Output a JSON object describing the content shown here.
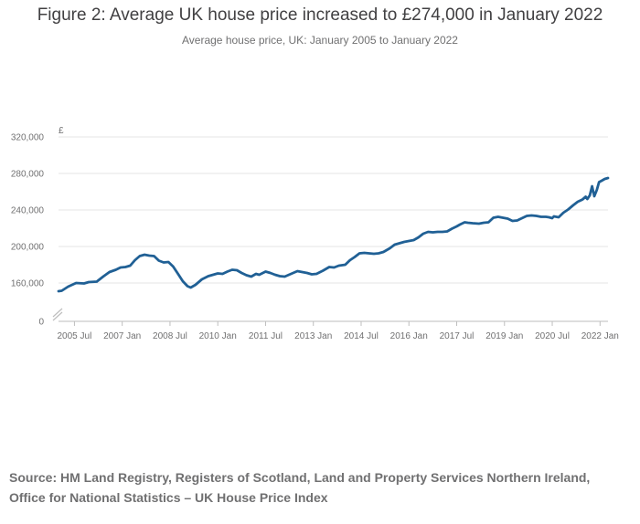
{
  "header": {
    "title": "Figure 2: Average UK house price increased to £274,000 in January 2022",
    "subtitle": "Average house price, UK: January 2005 to January 2022"
  },
  "source": {
    "line1": "Source: HM Land Registry, Registers of Scotland, Land and Property Services Northern Ireland,",
    "line2": "Office for National Statistics – UK House Price Index"
  },
  "colors": {
    "line": "#206095",
    "grid": "#e6e6e6",
    "axis": "#bebebe",
    "text": "#707071"
  },
  "chart_data": {
    "type": "line",
    "title": "Figure 2: Average UK house price increased to £274,000 in January 2022",
    "subtitle": "Average house price, UK: January 2005 to January 2022",
    "ylabel": "£",
    "xlabel": "",
    "ylim": [
      0,
      320000
    ],
    "axis_break": true,
    "grid": true,
    "y_ticks": [
      0,
      160000,
      200000,
      240000,
      280000,
      320000
    ],
    "y_tick_labels": [
      "0",
      "160,000",
      "200,000",
      "240,000",
      "280,000",
      "320,000"
    ],
    "x_ticks": [
      {
        "t": 2005.5,
        "label": "2005 Jul"
      },
      {
        "t": 2007.0,
        "label": "2007 Jan"
      },
      {
        "t": 2008.5,
        "label": "2008 Jul"
      },
      {
        "t": 2010.0,
        "label": "2010 Jan"
      },
      {
        "t": 2011.5,
        "label": "2011 Jul"
      },
      {
        "t": 2013.0,
        "label": "2013 Jan"
      },
      {
        "t": 2014.5,
        "label": "2014 Jul"
      },
      {
        "t": 2016.0,
        "label": "2016 Jan"
      },
      {
        "t": 2017.5,
        "label": "2017 Jul"
      },
      {
        "t": 2019.0,
        "label": "2019 Jan"
      },
      {
        "t": 2020.5,
        "label": "2020 Jul"
      },
      {
        "t": 2022.0,
        "label": "2022 Jan"
      }
    ],
    "series": [
      {
        "name": "Average house price",
        "points": [
          [
            2005.0,
            151000
          ],
          [
            2005.1,
            151500
          ],
          [
            2005.3,
            156000
          ],
          [
            2005.55,
            160000
          ],
          [
            2005.8,
            159500
          ],
          [
            2005.95,
            161000
          ],
          [
            2006.2,
            161500
          ],
          [
            2006.4,
            167000
          ],
          [
            2006.6,
            172000
          ],
          [
            2006.8,
            174500
          ],
          [
            2006.95,
            177000
          ],
          [
            2007.1,
            177500
          ],
          [
            2007.25,
            179000
          ],
          [
            2007.4,
            185000
          ],
          [
            2007.55,
            189500
          ],
          [
            2007.7,
            191000
          ],
          [
            2007.85,
            190000
          ],
          [
            2008.0,
            189500
          ],
          [
            2008.15,
            184500
          ],
          [
            2008.3,
            182500
          ],
          [
            2008.45,
            183000
          ],
          [
            2008.6,
            178000
          ],
          [
            2008.75,
            170000
          ],
          [
            2008.9,
            162000
          ],
          [
            2009.05,
            156500
          ],
          [
            2009.15,
            155000
          ],
          [
            2009.3,
            158000
          ],
          [
            2009.5,
            164000
          ],
          [
            2009.7,
            167500
          ],
          [
            2009.9,
            169500
          ],
          [
            2010.0,
            170500
          ],
          [
            2010.15,
            170000
          ],
          [
            2010.3,
            172500
          ],
          [
            2010.45,
            174500
          ],
          [
            2010.6,
            174000
          ],
          [
            2010.75,
            171000
          ],
          [
            2010.9,
            168500
          ],
          [
            2011.05,
            167000
          ],
          [
            2011.2,
            170000
          ],
          [
            2011.3,
            169000
          ],
          [
            2011.5,
            172500
          ],
          [
            2011.65,
            171000
          ],
          [
            2011.8,
            169000
          ],
          [
            2011.95,
            167500
          ],
          [
            2012.1,
            167000
          ],
          [
            2012.3,
            170000
          ],
          [
            2012.5,
            173000
          ],
          [
            2012.65,
            172000
          ],
          [
            2012.8,
            171000
          ],
          [
            2012.95,
            169500
          ],
          [
            2013.1,
            170000
          ],
          [
            2013.3,
            173500
          ],
          [
            2013.5,
            177500
          ],
          [
            2013.65,
            177000
          ],
          [
            2013.8,
            179000
          ],
          [
            2014.0,
            180000
          ],
          [
            2014.15,
            185000
          ],
          [
            2014.3,
            188500
          ],
          [
            2014.45,
            192500
          ],
          [
            2014.6,
            193000
          ],
          [
            2014.75,
            192500
          ],
          [
            2014.9,
            192000
          ],
          [
            2015.05,
            192500
          ],
          [
            2015.2,
            194000
          ],
          [
            2015.4,
            198000
          ],
          [
            2015.55,
            202000
          ],
          [
            2015.7,
            203500
          ],
          [
            2015.85,
            205000
          ],
          [
            2016.0,
            206000
          ],
          [
            2016.15,
            207000
          ],
          [
            2016.3,
            210000
          ],
          [
            2016.45,
            214000
          ],
          [
            2016.6,
            216000
          ],
          [
            2016.75,
            215500
          ],
          [
            2016.9,
            216000
          ],
          [
            2017.05,
            216000
          ],
          [
            2017.2,
            216500
          ],
          [
            2017.35,
            219500
          ],
          [
            2017.5,
            222000
          ],
          [
            2017.6,
            224000
          ],
          [
            2017.75,
            226500
          ],
          [
            2017.85,
            226000
          ],
          [
            2018.0,
            225500
          ],
          [
            2018.2,
            225000
          ],
          [
            2018.35,
            226000
          ],
          [
            2018.5,
            226500
          ],
          [
            2018.65,
            231500
          ],
          [
            2018.8,
            232500
          ],
          [
            2018.95,
            231500
          ],
          [
            2019.1,
            230500
          ],
          [
            2019.25,
            228000
          ],
          [
            2019.4,
            228500
          ],
          [
            2019.55,
            231000
          ],
          [
            2019.7,
            233500
          ],
          [
            2019.85,
            234000
          ],
          [
            2020.0,
            233500
          ],
          [
            2020.15,
            232500
          ],
          [
            2020.3,
            232500
          ],
          [
            2020.4,
            232000
          ],
          [
            2020.5,
            231000
          ],
          [
            2020.55,
            233000
          ],
          [
            2020.7,
            232000
          ],
          [
            2020.85,
            237000
          ],
          [
            2021.0,
            240500
          ],
          [
            2021.15,
            245000
          ],
          [
            2021.3,
            249000
          ],
          [
            2021.45,
            251500
          ],
          [
            2021.55,
            254500
          ],
          [
            2021.6,
            252000
          ],
          [
            2021.68,
            256000
          ],
          [
            2021.75,
            266000
          ],
          [
            2021.82,
            255000
          ],
          [
            2021.9,
            262000
          ],
          [
            2021.97,
            270500
          ],
          [
            2022.05,
            272000
          ],
          [
            2022.15,
            274000
          ],
          [
            2022.25,
            275000
          ]
        ]
      }
    ]
  }
}
